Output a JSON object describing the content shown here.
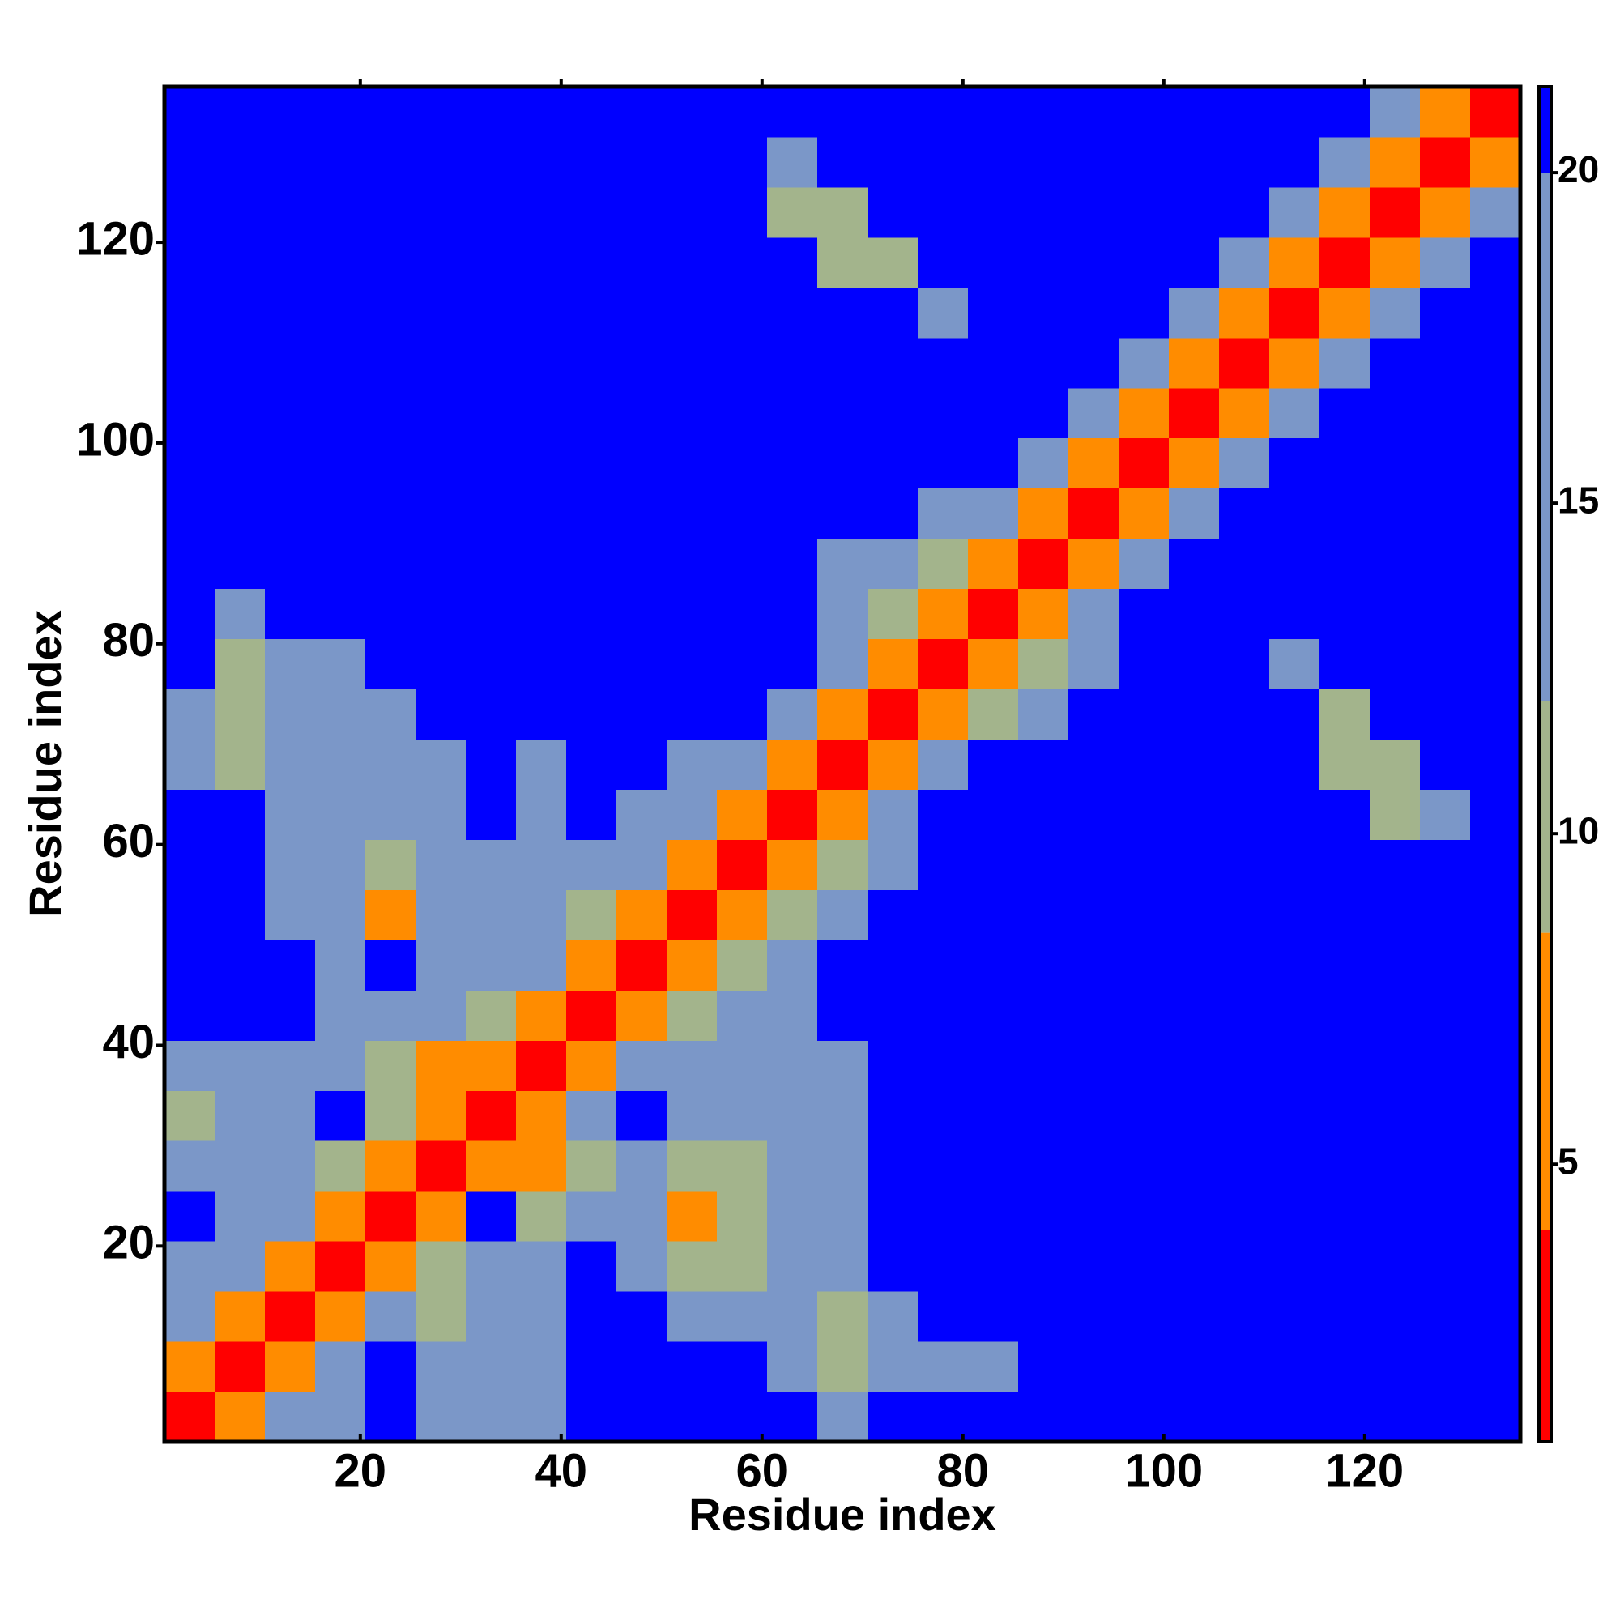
{
  "chart_data": {
    "type": "heatmap",
    "xlabel": "Residue index",
    "ylabel": "Residue index",
    "xbins": [
      0.5,
      5.5,
      10.5,
      15.5,
      20.5,
      25.5,
      30.5,
      35.5,
      40.5,
      45.5,
      50.5,
      55.5,
      60.5,
      65.5,
      70.5,
      75.5,
      80.5,
      85.5,
      90.5,
      95.5,
      100.5,
      105.5,
      110.5,
      115.5,
      120.5,
      125.5,
      130.5,
      135.5
    ],
    "ybins": [
      0.5,
      5.5,
      10.5,
      15.5,
      20.5,
      25.5,
      30.5,
      35.5,
      40.5,
      45.5,
      50.5,
      55.5,
      60.5,
      65.5,
      70.5,
      75.5,
      80.5,
      85.5,
      90.5,
      95.5,
      100.5,
      105.5,
      110.5,
      115.5,
      120.5,
      125.5,
      130.5,
      135.5
    ],
    "xlim": [
      0.5,
      135.5
    ],
    "ylim": [
      0.5,
      135.5
    ],
    "xticks": [
      20,
      40,
      60,
      80,
      100,
      120
    ],
    "yticks": [
      20,
      40,
      60,
      80,
      100,
      120
    ],
    "z": [
      [
        2,
        7,
        14,
        14,
        21,
        14,
        14,
        14,
        21,
        21,
        21,
        21,
        21,
        14,
        21,
        21,
        21,
        21,
        21,
        21,
        21,
        21,
        21,
        21,
        21,
        21,
        21
      ],
      [
        7,
        2,
        7,
        14,
        21,
        14,
        14,
        14,
        21,
        21,
        21,
        21,
        14,
        10,
        14,
        14,
        14,
        21,
        21,
        21,
        21,
        21,
        21,
        21,
        21,
        21,
        21
      ],
      [
        14,
        7,
        2,
        7,
        14,
        10,
        14,
        14,
        21,
        21,
        14,
        14,
        14,
        10,
        14,
        21,
        21,
        21,
        21,
        21,
        21,
        21,
        21,
        21,
        21,
        21,
        21
      ],
      [
        14,
        14,
        7,
        2,
        7,
        10,
        14,
        14,
        21,
        14,
        10,
        10,
        14,
        14,
        21,
        21,
        21,
        21,
        21,
        21,
        21,
        21,
        21,
        21,
        21,
        21,
        21
      ],
      [
        21,
        14,
        14,
        7,
        2,
        7,
        21,
        10,
        14,
        14,
        6,
        10,
        14,
        14,
        21,
        21,
        21,
        21,
        21,
        21,
        21,
        21,
        21,
        21,
        21,
        21,
        21
      ],
      [
        14,
        14,
        14,
        10,
        7,
        2,
        7,
        6,
        10,
        14,
        10,
        10,
        14,
        14,
        21,
        21,
        21,
        21,
        21,
        21,
        21,
        21,
        21,
        21,
        21,
        21,
        21
      ],
      [
        10,
        14,
        14,
        21,
        10,
        7,
        2,
        7,
        14,
        21,
        14,
        14,
        14,
        14,
        21,
        21,
        21,
        21,
        21,
        21,
        21,
        21,
        21,
        21,
        21,
        21,
        21
      ],
      [
        14,
        14,
        14,
        14,
        10,
        6,
        7,
        2,
        7,
        14,
        14,
        14,
        14,
        14,
        21,
        21,
        21,
        21,
        21,
        21,
        21,
        21,
        21,
        21,
        21,
        21,
        21
      ],
      [
        21,
        21,
        21,
        14,
        14,
        14,
        10,
        7,
        2,
        7,
        10,
        14,
        14,
        21,
        21,
        21,
        21,
        21,
        21,
        21,
        21,
        21,
        21,
        21,
        21,
        21,
        21
      ],
      [
        21,
        21,
        21,
        14,
        21,
        14,
        14,
        14,
        7,
        2,
        7,
        10,
        14,
        21,
        21,
        21,
        21,
        21,
        21,
        21,
        21,
        21,
        21,
        21,
        21,
        21,
        21
      ],
      [
        21,
        21,
        14,
        14,
        6,
        14,
        14,
        14,
        10,
        7,
        2,
        7,
        10,
        14,
        21,
        21,
        21,
        21,
        21,
        21,
        21,
        21,
        21,
        21,
        21,
        21,
        21
      ],
      [
        21,
        21,
        14,
        14,
        10,
        14,
        14,
        14,
        14,
        14,
        7,
        2,
        7,
        10,
        14,
        21,
        21,
        21,
        21,
        21,
        21,
        21,
        21,
        21,
        21,
        21,
        21
      ],
      [
        21,
        21,
        14,
        14,
        14,
        14,
        21,
        14,
        21,
        14,
        14,
        7,
        2,
        7,
        14,
        21,
        21,
        21,
        21,
        21,
        21,
        21,
        21,
        21,
        10,
        14,
        21
      ],
      [
        14,
        10,
        14,
        14,
        14,
        14,
        21,
        14,
        21,
        21,
        14,
        14,
        7,
        2,
        7,
        14,
        21,
        21,
        21,
        21,
        21,
        21,
        21,
        10,
        10,
        21,
        21
      ],
      [
        14,
        10,
        14,
        14,
        14,
        21,
        21,
        21,
        21,
        21,
        21,
        21,
        14,
        7,
        2,
        7,
        10,
        14,
        21,
        21,
        21,
        21,
        21,
        10,
        21,
        21,
        21
      ],
      [
        21,
        10,
        14,
        14,
        21,
        21,
        21,
        21,
        21,
        21,
        21,
        21,
        21,
        14,
        7,
        2,
        7,
        10,
        14,
        21,
        21,
        21,
        14,
        21,
        21,
        21,
        21
      ],
      [
        21,
        14,
        21,
        21,
        21,
        21,
        21,
        21,
        21,
        21,
        21,
        21,
        21,
        14,
        10,
        7,
        2,
        7,
        14,
        21,
        21,
        21,
        21,
        21,
        21,
        21,
        21
      ],
      [
        21,
        21,
        21,
        21,
        21,
        21,
        21,
        21,
        21,
        21,
        21,
        21,
        21,
        14,
        14,
        10,
        7,
        2,
        7,
        14,
        21,
        21,
        21,
        21,
        21,
        21,
        21
      ],
      [
        21,
        21,
        21,
        21,
        21,
        21,
        21,
        21,
        21,
        21,
        21,
        21,
        21,
        21,
        21,
        14,
        14,
        7,
        2,
        7,
        14,
        21,
        21,
        21,
        21,
        21,
        21
      ],
      [
        21,
        21,
        21,
        21,
        21,
        21,
        21,
        21,
        21,
        21,
        21,
        21,
        21,
        21,
        21,
        21,
        21,
        14,
        7,
        2,
        7,
        14,
        21,
        21,
        21,
        21,
        21
      ],
      [
        21,
        21,
        21,
        21,
        21,
        21,
        21,
        21,
        21,
        21,
        21,
        21,
        21,
        21,
        21,
        21,
        21,
        21,
        14,
        7,
        2,
        7,
        14,
        21,
        21,
        21,
        21
      ],
      [
        21,
        21,
        21,
        21,
        21,
        21,
        21,
        21,
        21,
        21,
        21,
        21,
        21,
        21,
        21,
        21,
        21,
        21,
        21,
        14,
        7,
        2,
        7,
        14,
        21,
        21,
        21
      ],
      [
        21,
        21,
        21,
        21,
        21,
        21,
        21,
        21,
        21,
        21,
        21,
        21,
        21,
        21,
        21,
        14,
        21,
        21,
        21,
        21,
        14,
        7,
        2,
        7,
        14,
        21,
        21
      ],
      [
        21,
        21,
        21,
        21,
        21,
        21,
        21,
        21,
        21,
        21,
        21,
        21,
        21,
        10,
        10,
        21,
        21,
        21,
        21,
        21,
        21,
        14,
        7,
        2,
        7,
        14,
        21
      ],
      [
        21,
        21,
        21,
        21,
        21,
        21,
        21,
        21,
        21,
        21,
        21,
        21,
        10,
        10,
        21,
        21,
        21,
        21,
        21,
        21,
        21,
        21,
        14,
        7,
        2,
        7,
        14
      ],
      [
        21,
        21,
        21,
        21,
        21,
        21,
        21,
        21,
        21,
        21,
        21,
        21,
        14,
        21,
        21,
        21,
        21,
        21,
        21,
        21,
        21,
        21,
        21,
        14,
        7,
        2,
        7
      ],
      [
        21,
        21,
        21,
        21,
        21,
        21,
        21,
        21,
        21,
        21,
        21,
        21,
        21,
        21,
        21,
        21,
        21,
        21,
        21,
        21,
        21,
        21,
        21,
        21,
        14,
        7,
        2
      ]
    ],
    "colorbar": {
      "stops": [
        0.8,
        4,
        8.5,
        12,
        20,
        21.3
      ],
      "colors": [
        "#ff0000",
        "#ff8c00",
        "#a3b48c",
        "#7b97c8",
        "#0000ff"
      ],
      "ticks": [
        5,
        10,
        15,
        20
      ]
    }
  }
}
